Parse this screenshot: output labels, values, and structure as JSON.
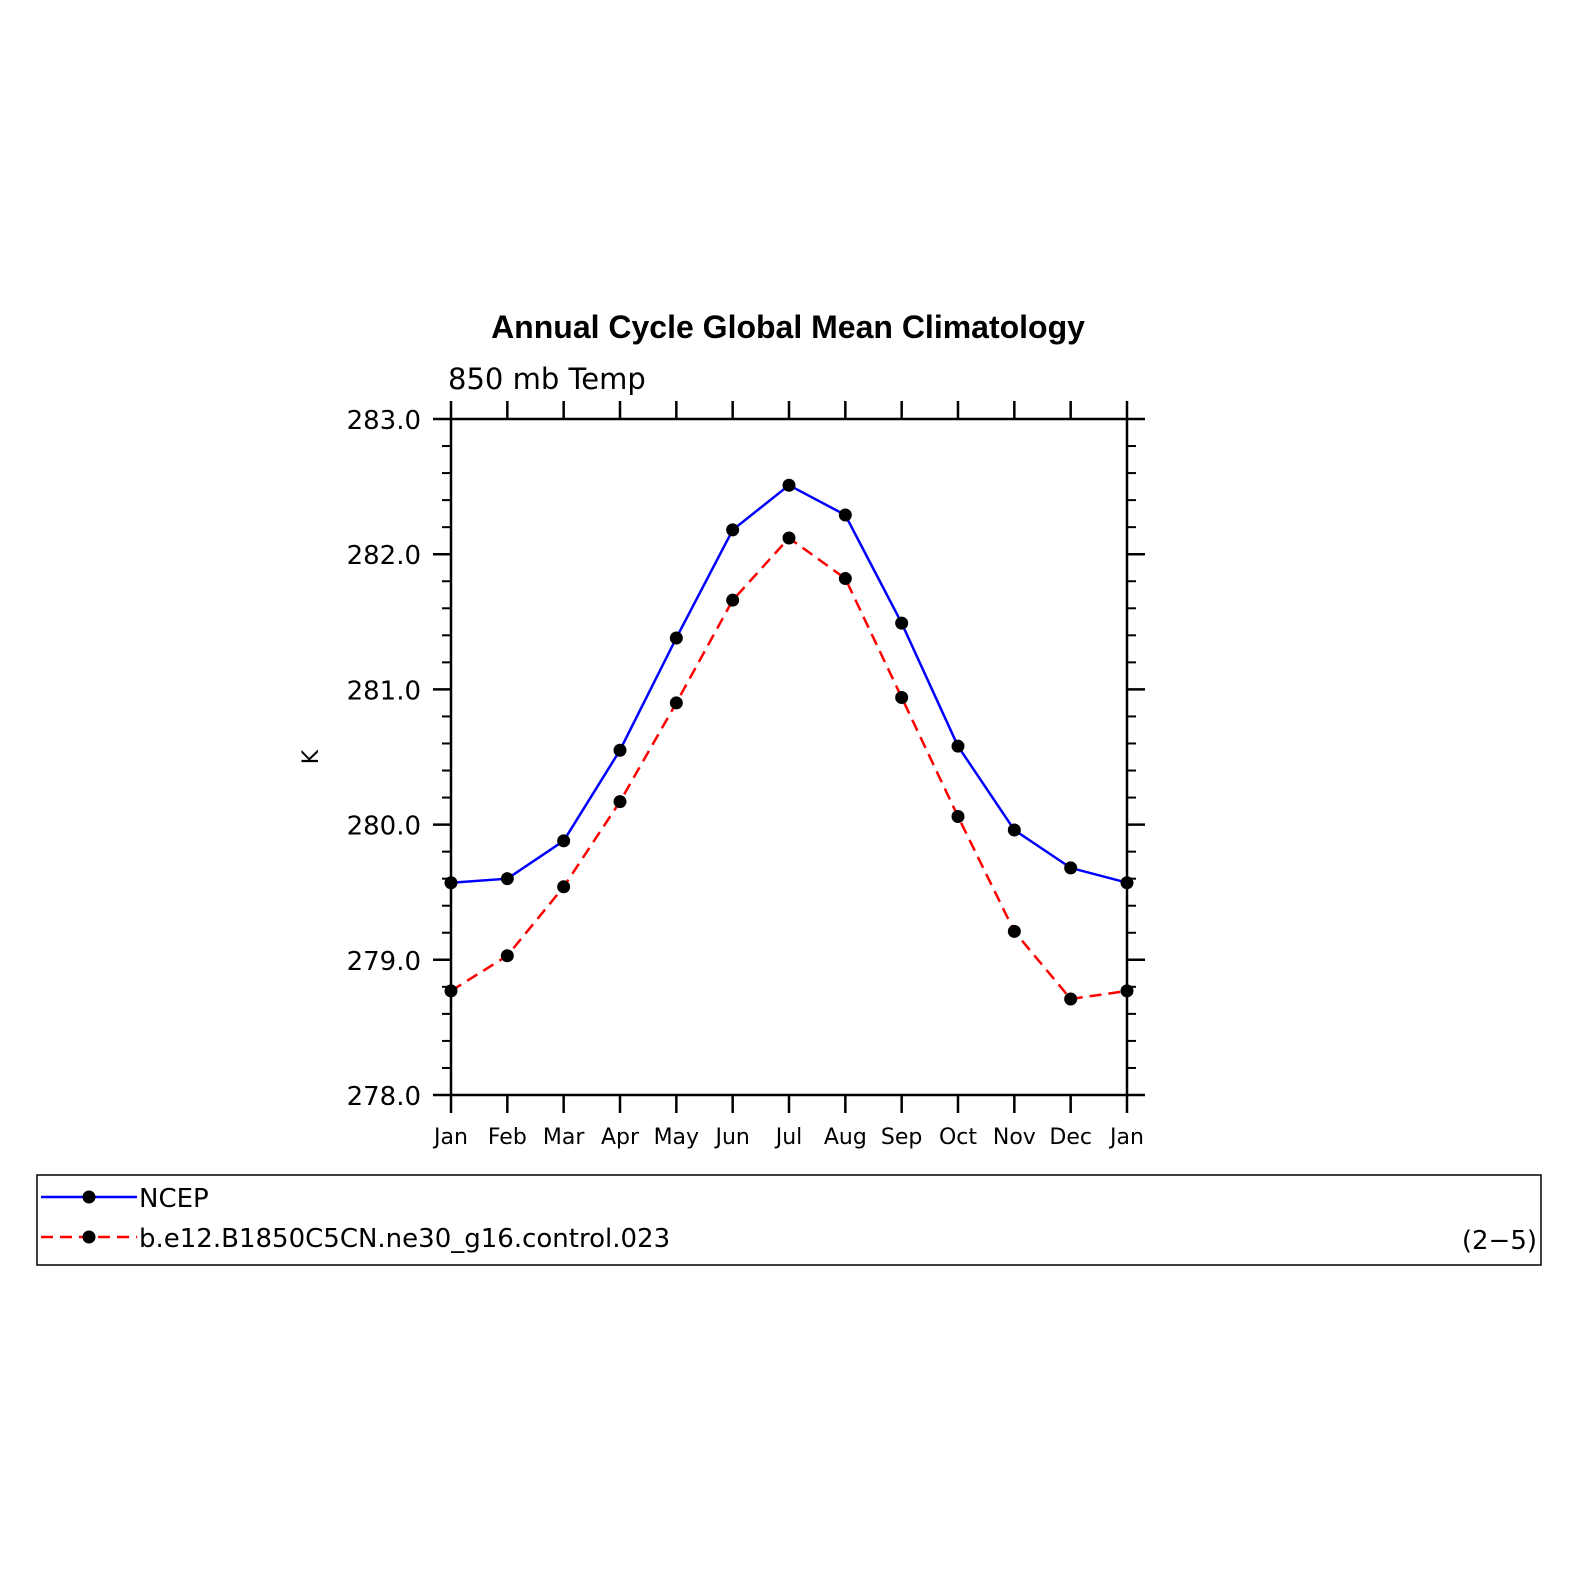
{
  "chart_data": {
    "type": "line",
    "title": "Annual Cycle Global Mean Climatology",
    "subtitle": "850 mb Temp",
    "xlabel": "",
    "ylabel": "K",
    "categories": [
      "Jan",
      "Feb",
      "Mar",
      "Apr",
      "May",
      "Jun",
      "Jul",
      "Aug",
      "Sep",
      "Oct",
      "Nov",
      "Dec",
      "Jan"
    ],
    "ylim": [
      278.0,
      283.0
    ],
    "yticks": [
      "278.0",
      "279.0",
      "280.0",
      "281.0",
      "282.0",
      "283.0"
    ],
    "series": [
      {
        "name": "NCEP",
        "color": "#0000ff",
        "style": "solid",
        "values": [
          279.57,
          279.6,
          279.88,
          280.55,
          281.38,
          282.18,
          282.51,
          282.29,
          281.49,
          280.58,
          279.96,
          279.68,
          279.57
        ]
      },
      {
        "name": "b.e12.B1850C5CN.ne30_g16.control.023",
        "color": "#ff0000",
        "style": "dashed",
        "values": [
          278.77,
          279.03,
          279.54,
          280.17,
          280.9,
          281.66,
          282.12,
          281.82,
          280.94,
          280.06,
          279.21,
          278.71,
          278.77
        ]
      }
    ],
    "legend": {
      "placement": "bottom",
      "note": "(2−5)"
    }
  }
}
